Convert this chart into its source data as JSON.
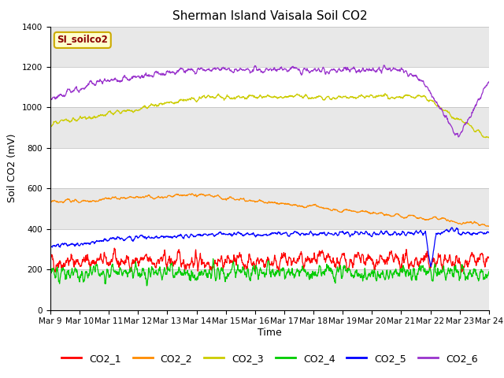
{
  "title": "Sherman Island Vaisala Soil CO2",
  "xlabel": "Time",
  "ylabel": "Soil CO2 (mV)",
  "ylim": [
    0,
    1400
  ],
  "yticks": [
    0,
    200,
    400,
    600,
    800,
    1000,
    1200,
    1400
  ],
  "x_labels": [
    "Mar 9",
    "Mar 10",
    "Mar 11",
    "Mar 12",
    "Mar 13",
    "Mar 14",
    "Mar 15",
    "Mar 16",
    "Mar 17",
    "Mar 18",
    "Mar 19",
    "Mar 20",
    "Mar 21",
    "Mar 22",
    "Mar 23",
    "Mar 24"
  ],
  "watermark_text": "SI_soilco2",
  "watermark_bg": "#ffffcc",
  "watermark_border": "#ccaa00",
  "watermark_text_color": "#8b0000",
  "colors": {
    "CO2_1": "#ff0000",
    "CO2_2": "#ff8c00",
    "CO2_3": "#cccc00",
    "CO2_4": "#00cc00",
    "CO2_5": "#0000ff",
    "CO2_6": "#9933cc"
  },
  "band_colors": [
    "#e8e8e8",
    "#ffffff"
  ],
  "title_fontsize": 11,
  "axis_label_fontsize": 9,
  "tick_fontsize": 7.5,
  "legend_fontsize": 9
}
